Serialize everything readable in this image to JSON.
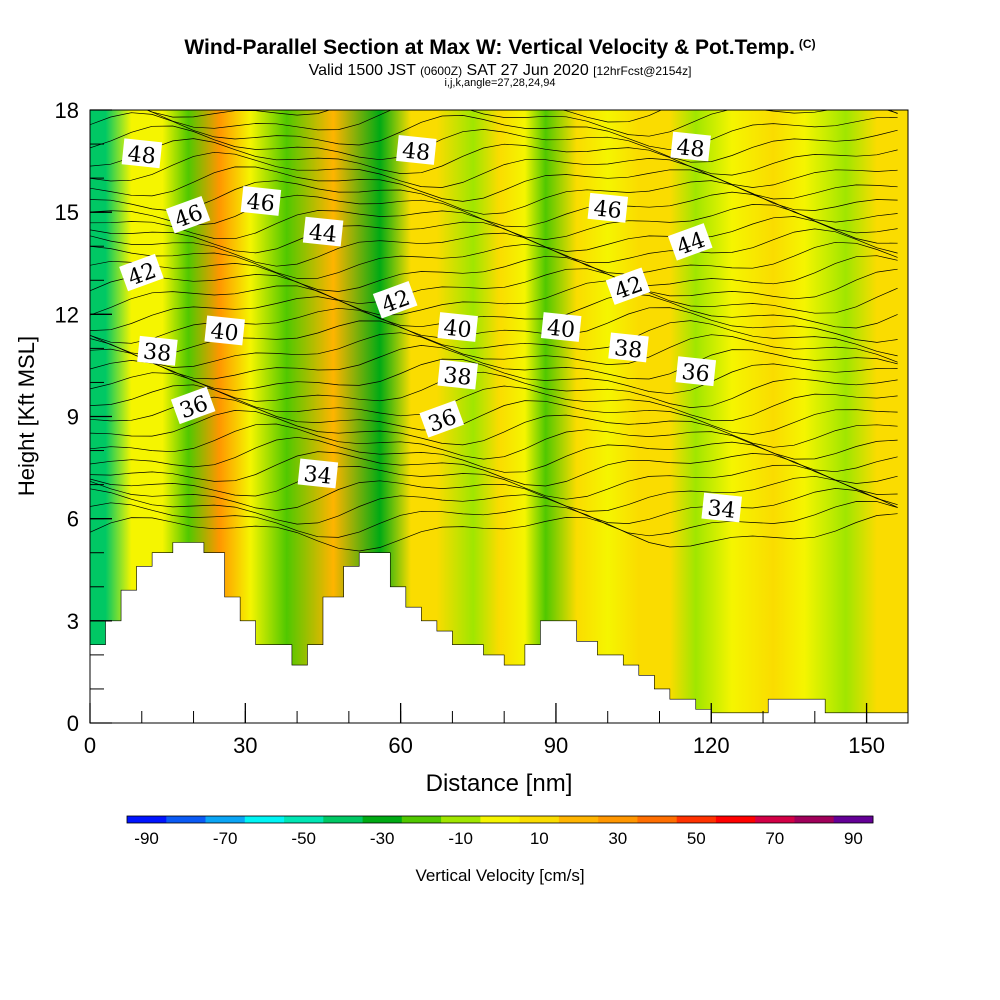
{
  "header": {
    "title": "Wind-Parallel Section at Max W: Vertical Velocity & Pot.Temp.",
    "copyright": "(C)",
    "valid_prefix": "Valid 1500 JST",
    "valid_utc": "(0600Z)",
    "valid_date": "SAT 27 Jun 2020",
    "forecast": "[12hrFcst@2154z]",
    "indices": "i,j,k,angle=27,28,24,94"
  },
  "colors": {
    "levels": [
      "#0014ff",
      "#0a5af5",
      "#0aa5f5",
      "#00f5f5",
      "#00e6b4",
      "#00c864",
      "#00aa14",
      "#50c800",
      "#a0e600",
      "#f5f500",
      "#fadc00",
      "#ffb400",
      "#ff9600",
      "#ff6e00",
      "#ff3200",
      "#ff0000",
      "#d20046",
      "#a0005a",
      "#640096"
    ],
    "ground": "#ffffff"
  },
  "chart_data": {
    "type": "heatmap",
    "xlabel": "Distance [nm]",
    "ylabel": "Height [Kft MSL]",
    "xlim": [
      0,
      158
    ],
    "ylim": [
      0,
      18
    ],
    "x_ticks": [
      0,
      30,
      60,
      90,
      120,
      150
    ],
    "y_ticks": [
      0,
      3,
      6,
      9,
      12,
      15,
      18
    ],
    "x_tick_labels": [
      "0",
      "30",
      "60",
      "90",
      "120",
      "150"
    ],
    "y_tick_labels": [
      "0",
      "3",
      "6",
      "9",
      "12",
      "15",
      "18"
    ],
    "colorbar": {
      "label": "Vertical Velocity [cm/s]",
      "tick_labels": [
        "-90",
        "-70",
        "-50",
        "-30",
        "-10",
        "10",
        "30",
        "50",
        "70",
        "90"
      ],
      "tick_values": [
        -90,
        -70,
        -50,
        -30,
        -10,
        10,
        30,
        50,
        70,
        90
      ],
      "boundaries": [
        -95,
        -85,
        -75,
        -65,
        -55,
        -45,
        -35,
        -25,
        -15,
        -5,
        5,
        15,
        25,
        35,
        45,
        55,
        65,
        75,
        85,
        95
      ]
    },
    "vertical_velocity_bands": [
      {
        "x": 3,
        "w": -40
      },
      {
        "x": 8,
        "w": 0
      },
      {
        "x": 14,
        "w": -5
      },
      {
        "x": 19,
        "w": -25
      },
      {
        "x": 25,
        "w": 25
      },
      {
        "x": 31,
        "w": -5
      },
      {
        "x": 38,
        "w": -20
      },
      {
        "x": 47,
        "w": 20
      },
      {
        "x": 56,
        "w": -30
      },
      {
        "x": 62,
        "w": 12
      },
      {
        "x": 67,
        "w": 8
      },
      {
        "x": 74,
        "w": -8
      },
      {
        "x": 79,
        "w": 5
      },
      {
        "x": 84,
        "w": -3
      },
      {
        "x": 88,
        "w": -18
      },
      {
        "x": 94,
        "w": 8
      },
      {
        "x": 100,
        "w": 0
      },
      {
        "x": 106,
        "w": 10
      },
      {
        "x": 112,
        "w": 8
      },
      {
        "x": 117,
        "w": -15
      },
      {
        "x": 124,
        "w": -2
      },
      {
        "x": 132,
        "w": 8
      },
      {
        "x": 138,
        "w": -5
      },
      {
        "x": 146,
        "w": -15
      },
      {
        "x": 152,
        "w": 8
      },
      {
        "x": 156,
        "w": 5
      }
    ],
    "terrain_height_kft": [
      [
        0,
        2.3
      ],
      [
        3,
        3.0
      ],
      [
        6,
        3.9
      ],
      [
        9,
        4.6
      ],
      [
        12,
        5.0
      ],
      [
        16,
        5.3
      ],
      [
        22,
        5.0
      ],
      [
        26,
        3.7
      ],
      [
        29,
        3.0
      ],
      [
        32,
        2.3
      ],
      [
        39,
        1.7
      ],
      [
        42,
        2.3
      ],
      [
        45,
        3.7
      ],
      [
        49,
        4.6
      ],
      [
        52,
        5.0
      ],
      [
        58,
        4.0
      ],
      [
        61,
        3.4
      ],
      [
        64,
        3.0
      ],
      [
        67,
        2.7
      ],
      [
        70,
        2.3
      ],
      [
        76,
        2.0
      ],
      [
        80,
        1.7
      ],
      [
        84,
        2.3
      ],
      [
        87,
        3.0
      ],
      [
        94,
        2.4
      ],
      [
        98,
        2.0
      ],
      [
        103,
        1.7
      ],
      [
        106,
        1.4
      ],
      [
        109,
        1.0
      ],
      [
        112,
        0.7
      ],
      [
        117,
        0.4
      ],
      [
        120,
        0.3
      ],
      [
        131,
        0.7
      ],
      [
        142,
        0.3
      ],
      [
        158,
        0.3
      ]
    ],
    "pot_temp_contour_labels": [
      {
        "text": "48",
        "x": 10,
        "y": 16.7
      },
      {
        "text": "46",
        "x": 19,
        "y": 14.9
      },
      {
        "text": "46",
        "x": 33,
        "y": 15.3
      },
      {
        "text": "44",
        "x": 45,
        "y": 14.4
      },
      {
        "text": "42",
        "x": 10,
        "y": 13.2
      },
      {
        "text": "40",
        "x": 26,
        "y": 11.5
      },
      {
        "text": "38",
        "x": 13,
        "y": 10.9
      },
      {
        "text": "36",
        "x": 20,
        "y": 9.3
      },
      {
        "text": "34",
        "x": 44,
        "y": 7.3
      },
      {
        "text": "48",
        "x": 63,
        "y": 16.8
      },
      {
        "text": "42",
        "x": 59,
        "y": 12.4
      },
      {
        "text": "40",
        "x": 71,
        "y": 11.6
      },
      {
        "text": "38",
        "x": 71,
        "y": 10.2
      },
      {
        "text": "36",
        "x": 68,
        "y": 8.9
      },
      {
        "text": "40",
        "x": 91,
        "y": 11.6
      },
      {
        "text": "46",
        "x": 100,
        "y": 15.1
      },
      {
        "text": "42",
        "x": 104,
        "y": 12.8
      },
      {
        "text": "38",
        "x": 104,
        "y": 11.0
      },
      {
        "text": "48",
        "x": 116,
        "y": 16.9
      },
      {
        "text": "44",
        "x": 116,
        "y": 14.1
      },
      {
        "text": "36",
        "x": 117,
        "y": 10.3
      },
      {
        "text": "34",
        "x": 122,
        "y": 6.3
      }
    ]
  }
}
